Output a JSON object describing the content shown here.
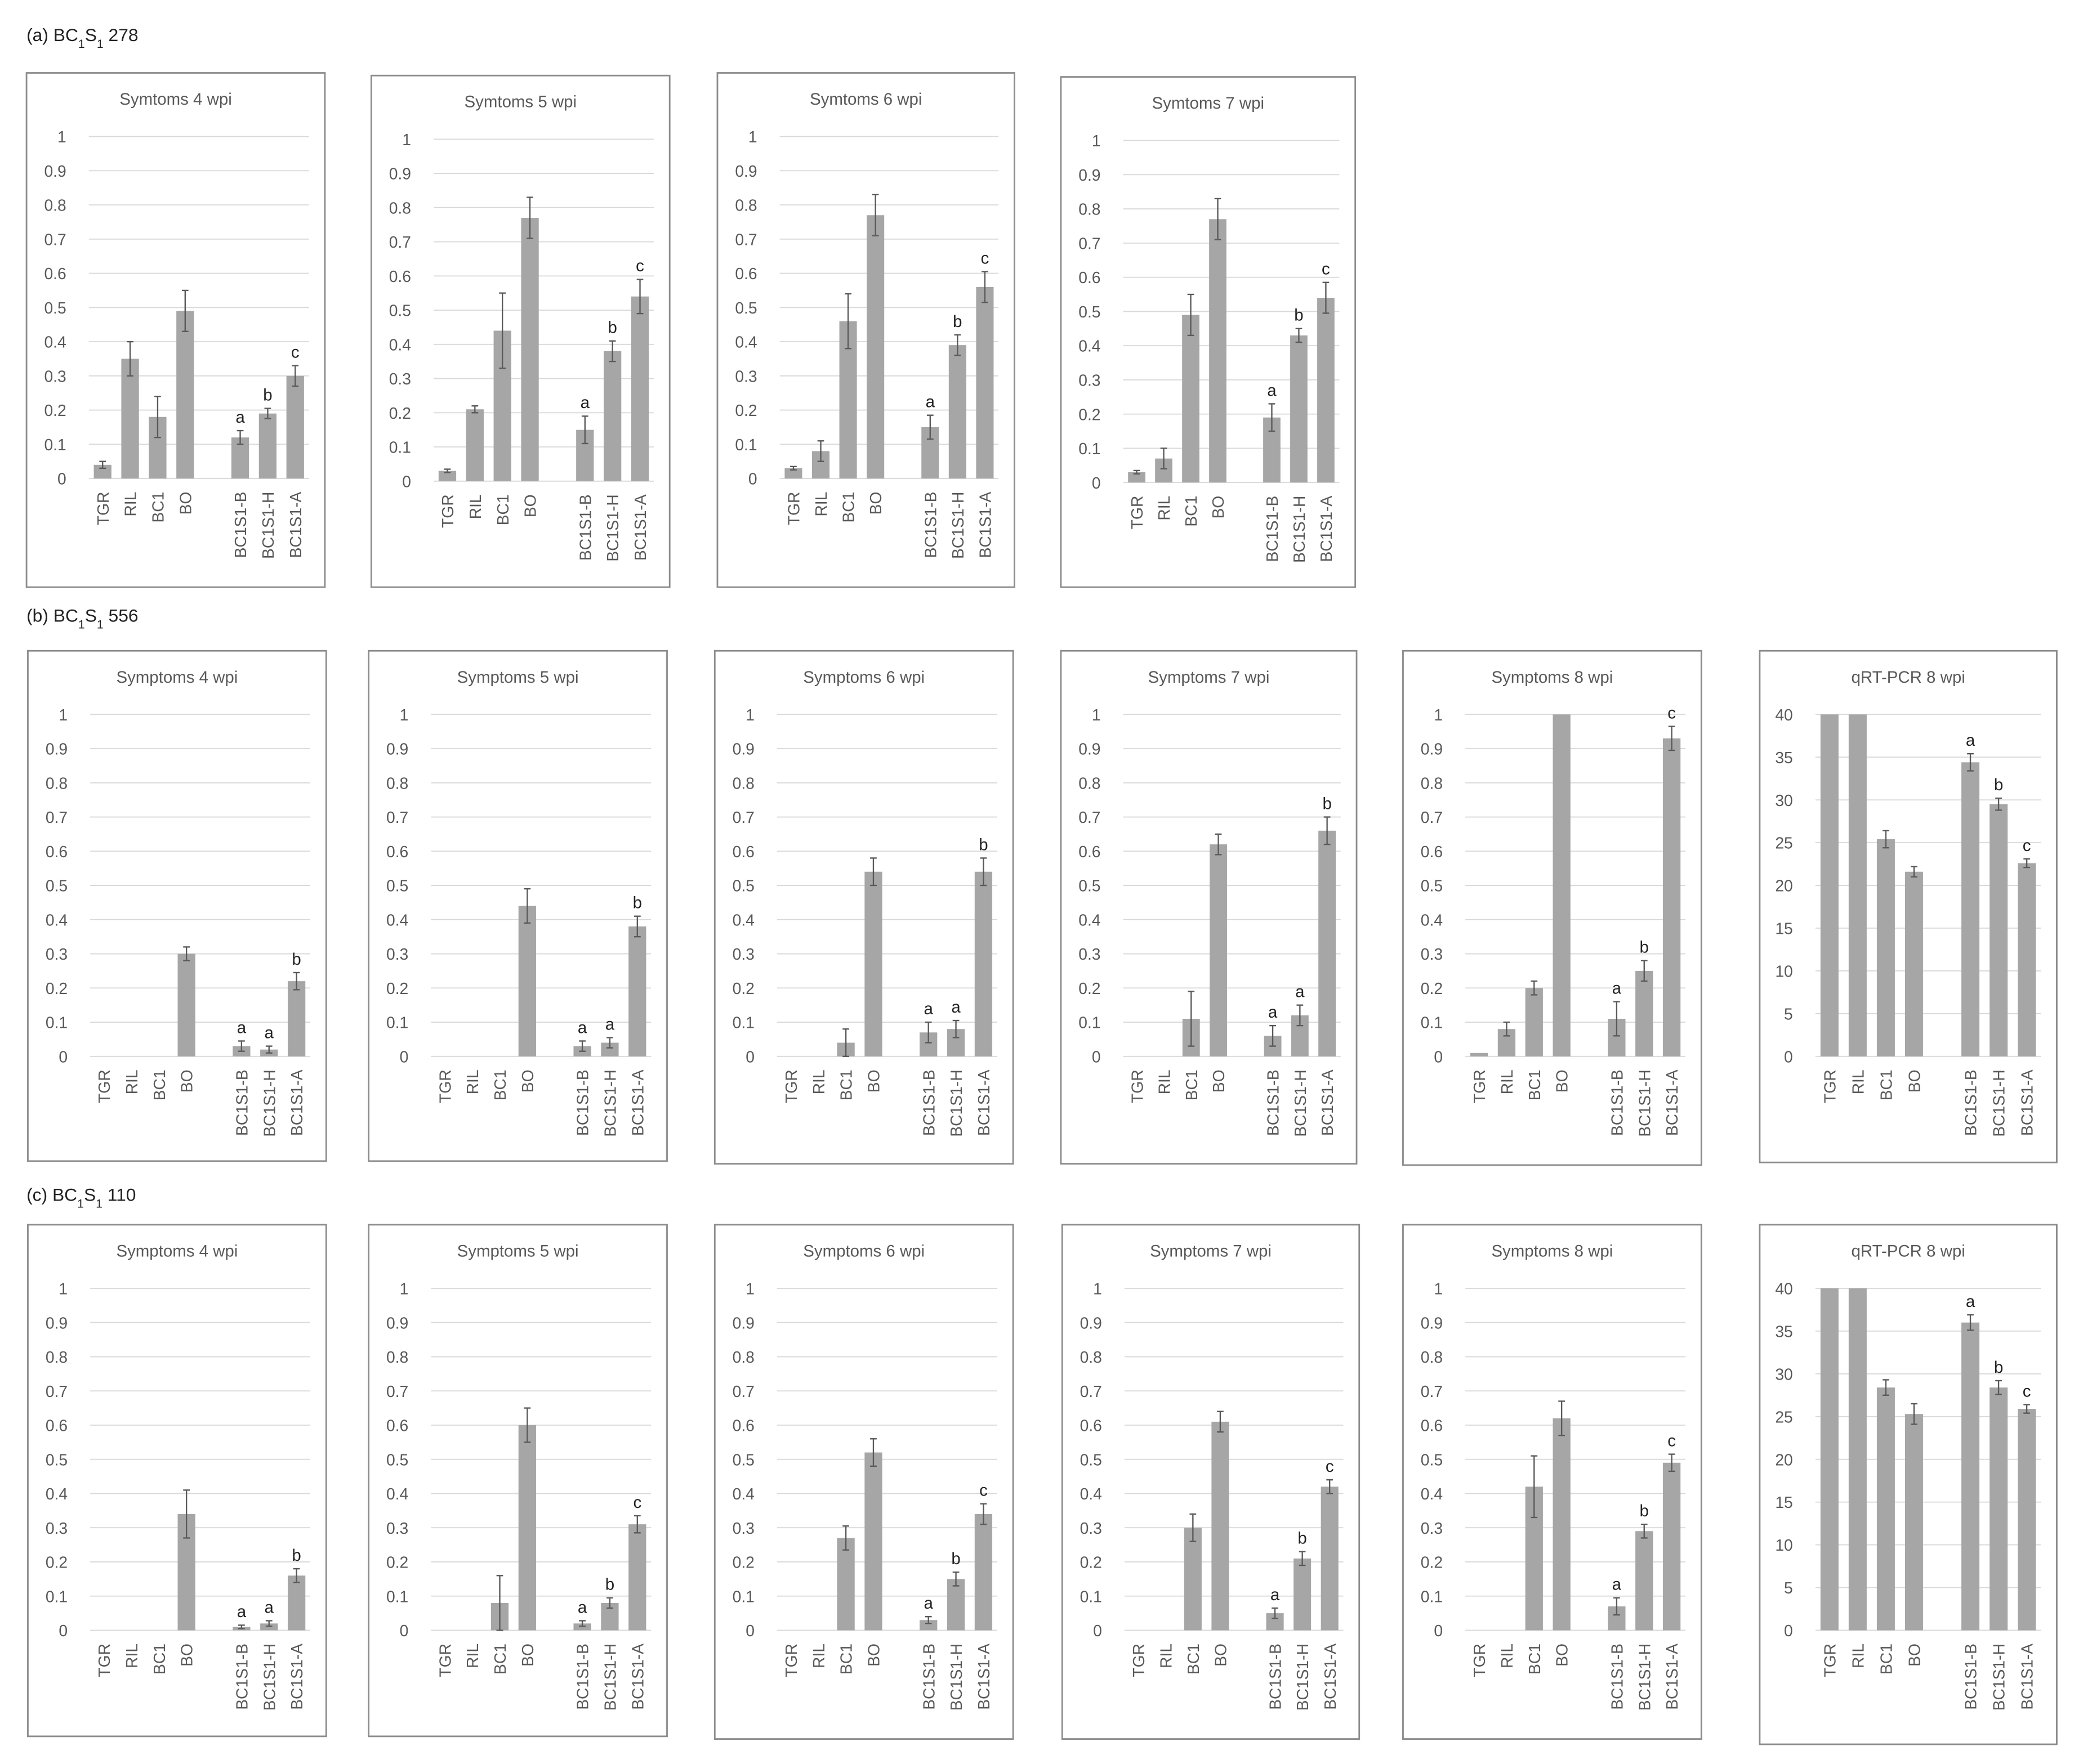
{
  "groups": [
    {
      "prefix": "(a) BC",
      "sub1": "1",
      "mid": "S",
      "sub2": "1",
      "suffix": " 278"
    },
    {
      "prefix": "(b) BC",
      "sub1": "1",
      "mid": "S",
      "sub2": "1",
      "suffix": " 556"
    },
    {
      "prefix": "(c) BC",
      "sub1": "1",
      "mid": "S",
      "sub2": "1",
      "suffix": " 110"
    }
  ],
  "colors": {
    "bar": "#a6a6a6",
    "error": "#595959",
    "grid": "#d9d9d9",
    "frame": "#8c8c8c",
    "text": "#595959"
  },
  "chart_data": [
    {
      "type": "bar",
      "group": 0,
      "title": "Symtoms 4 wpi",
      "categories": [
        "TGR",
        "RIL",
        "BC1",
        "BO",
        "",
        "BC1S1-B",
        "BC1S1-H",
        "BC1S1-A"
      ],
      "values": [
        0.04,
        0.35,
        0.18,
        0.49,
        null,
        0.12,
        0.19,
        0.3
      ],
      "errors": [
        0.01,
        0.05,
        0.06,
        0.06,
        null,
        0.02,
        0.015,
        0.03
      ],
      "letters": [
        "",
        "",
        "",
        "",
        "",
        "a",
        "b",
        "c"
      ],
      "ylim": [
        0,
        1
      ],
      "yticks": [
        "0",
        "0.1",
        "0.2",
        "0.3",
        "0.4",
        "0.5",
        "0.6",
        "0.7",
        "0.8",
        "0.9",
        "1"
      ],
      "grid": true
    },
    {
      "type": "bar",
      "group": 0,
      "title": "Symtoms 5 wpi",
      "categories": [
        "TGR",
        "RIL",
        "BC1",
        "BO",
        "",
        "BC1S1-B",
        "BC1S1-H",
        "BC1S1-A"
      ],
      "values": [
        0.03,
        0.21,
        0.44,
        0.77,
        null,
        0.15,
        0.38,
        0.54
      ],
      "errors": [
        0.005,
        0.01,
        0.11,
        0.06,
        null,
        0.04,
        0.03,
        0.05
      ],
      "letters": [
        "",
        "",
        "",
        "",
        "",
        "a",
        "b",
        "c"
      ],
      "ylim": [
        0,
        1
      ],
      "yticks": [
        "0",
        "0.1",
        "0.2",
        "0.3",
        "0.4",
        "0.5",
        "0.6",
        "0.7",
        "0.8",
        "0.9",
        "1"
      ],
      "grid": true
    },
    {
      "type": "bar",
      "group": 0,
      "title": "Symtoms 6 wpi",
      "categories": [
        "TGR",
        "RIL",
        "BC1",
        "BO",
        "",
        "BC1S1-B",
        "BC1S1-H",
        "BC1S1-A"
      ],
      "values": [
        0.03,
        0.08,
        0.46,
        0.77,
        null,
        0.15,
        0.39,
        0.56
      ],
      "errors": [
        0.005,
        0.03,
        0.08,
        0.06,
        null,
        0.035,
        0.03,
        0.045
      ],
      "letters": [
        "",
        "",
        "",
        "",
        "",
        "a",
        "b",
        "c"
      ],
      "ylim": [
        0,
        1
      ],
      "yticks": [
        "0",
        "0.1",
        "0.2",
        "0.3",
        "0.4",
        "0.5",
        "0.6",
        "0.7",
        "0.8",
        "0.9",
        "1"
      ],
      "grid": true
    },
    {
      "type": "bar",
      "group": 0,
      "title": "Symtoms 7 wpi",
      "categories": [
        "TGR",
        "RIL",
        "BC1",
        "BO",
        "",
        "BC1S1-B",
        "BC1S1-H",
        "BC1S1-A"
      ],
      "values": [
        0.03,
        0.07,
        0.49,
        0.77,
        null,
        0.19,
        0.43,
        0.54
      ],
      "errors": [
        0.005,
        0.03,
        0.06,
        0.06,
        null,
        0.04,
        0.02,
        0.045
      ],
      "letters": [
        "",
        "",
        "",
        "",
        "",
        "a",
        "b",
        "c"
      ],
      "ylim": [
        0,
        1
      ],
      "yticks": [
        "0",
        "0.1",
        "0.2",
        "0.3",
        "0.4",
        "0.5",
        "0.6",
        "0.7",
        "0.8",
        "0.9",
        "1"
      ],
      "grid": true
    },
    {
      "type": "bar",
      "group": 1,
      "title": "Symptoms 4 wpi",
      "categories": [
        "TGR",
        "RIL",
        "BC1",
        "BO",
        "",
        "BC1S1-B",
        "BC1S1-H",
        "BC1S1-A"
      ],
      "values": [
        0,
        0,
        0,
        0.3,
        null,
        0.03,
        0.02,
        0.22
      ],
      "errors": [
        0,
        0,
        0,
        0.02,
        null,
        0.015,
        0.01,
        0.025
      ],
      "letters": [
        "",
        "",
        "",
        "",
        "",
        "a",
        "a",
        "b"
      ],
      "ylim": [
        0,
        1
      ],
      "yticks": [
        "0",
        "0.1",
        "0.2",
        "0.3",
        "0.4",
        "0.5",
        "0.6",
        "0.7",
        "0.8",
        "0.9",
        "1"
      ],
      "grid": true
    },
    {
      "type": "bar",
      "group": 1,
      "title": "Symptoms 5 wpi",
      "categories": [
        "TGR",
        "RIL",
        "BC1",
        "BO",
        "",
        "BC1S1-B",
        "BC1S1-H",
        "BC1S1-A"
      ],
      "values": [
        0,
        0,
        0,
        0.44,
        null,
        0.03,
        0.04,
        0.38
      ],
      "errors": [
        0,
        0,
        0,
        0.05,
        null,
        0.015,
        0.015,
        0.03
      ],
      "letters": [
        "",
        "",
        "",
        "",
        "",
        "a",
        "a",
        "b"
      ],
      "ylim": [
        0,
        1
      ],
      "yticks": [
        "0",
        "0.1",
        "0.2",
        "0.3",
        "0.4",
        "0.5",
        "0.6",
        "0.7",
        "0.8",
        "0.9",
        "1"
      ],
      "grid": true
    },
    {
      "type": "bar",
      "group": 1,
      "title": "Symptoms 6 wpi",
      "categories": [
        "TGR",
        "RIL",
        "BC1",
        "BO",
        "",
        "BC1S1-B",
        "BC1S1-H",
        "BC1S1-A"
      ],
      "values": [
        0,
        0,
        0.04,
        0.54,
        null,
        0.07,
        0.08,
        0.54
      ],
      "errors": [
        0,
        0,
        0.04,
        0.04,
        null,
        0.03,
        0.025,
        0.04
      ],
      "letters": [
        "",
        "",
        "",
        "",
        "",
        "a",
        "a",
        "b"
      ],
      "ylim": [
        0,
        1
      ],
      "yticks": [
        "0",
        "0.1",
        "0.2",
        "0.3",
        "0.4",
        "0.5",
        "0.6",
        "0.7",
        "0.8",
        "0.9",
        "1"
      ],
      "grid": true
    },
    {
      "type": "bar",
      "group": 1,
      "title": "Symptoms 7 wpi",
      "categories": [
        "TGR",
        "RIL",
        "BC1",
        "BO",
        "",
        "BC1S1-B",
        "BC1S1-H",
        "BC1S1-A"
      ],
      "values": [
        0,
        0,
        0.11,
        0.62,
        null,
        0.06,
        0.12,
        0.66
      ],
      "errors": [
        0,
        0,
        0.08,
        0.03,
        null,
        0.03,
        0.03,
        0.04
      ],
      "letters": [
        "",
        "",
        "",
        "",
        "",
        "a",
        "a",
        "b"
      ],
      "ylim": [
        0,
        1
      ],
      "yticks": [
        "0",
        "0.1",
        "0.2",
        "0.3",
        "0.4",
        "0.5",
        "0.6",
        "0.7",
        "0.8",
        "0.9",
        "1"
      ],
      "grid": true
    },
    {
      "type": "bar",
      "group": 1,
      "title": "Symptoms 8 wpi",
      "categories": [
        "TGR",
        "RIL",
        "BC1",
        "BO",
        "",
        "BC1S1-B",
        "BC1S1-H",
        "BC1S1-A"
      ],
      "values": [
        0.01,
        0.08,
        0.2,
        1.0,
        null,
        0.11,
        0.25,
        0.93
      ],
      "errors": [
        0,
        0.02,
        0.02,
        0,
        null,
        0.05,
        0.03,
        0.035
      ],
      "letters": [
        "",
        "",
        "",
        "",
        "",
        "a",
        "b",
        "c"
      ],
      "ylim": [
        0,
        1
      ],
      "yticks": [
        "0",
        "0.1",
        "0.2",
        "0.3",
        "0.4",
        "0.5",
        "0.6",
        "0.7",
        "0.8",
        "0.9",
        "1"
      ],
      "grid": true
    },
    {
      "type": "bar",
      "group": 1,
      "title": "qRT-PCR 8 wpi",
      "categories": [
        "TGR",
        "RIL",
        "BC1",
        "BO",
        "",
        "BC1S1-B",
        "BC1S1-H",
        "BC1S1-A"
      ],
      "values": [
        40,
        40,
        25.4,
        21.6,
        null,
        34.4,
        29.5,
        22.6
      ],
      "errors": [
        0,
        0,
        1.0,
        0.6,
        null,
        1.0,
        0.7,
        0.5
      ],
      "letters": [
        "",
        "",
        "",
        "",
        "",
        "a",
        "b",
        "c"
      ],
      "ylim": [
        0,
        40
      ],
      "yticks": [
        "0",
        "5",
        "10",
        "15",
        "20",
        "25",
        "30",
        "35",
        "40"
      ],
      "grid": true
    },
    {
      "type": "bar",
      "group": 2,
      "title": "Symptoms 4 wpi",
      "categories": [
        "TGR",
        "RIL",
        "BC1",
        "BO",
        "",
        "BC1S1-B",
        "BC1S1-H",
        "BC1S1-A"
      ],
      "values": [
        0,
        0,
        0,
        0.34,
        null,
        0.01,
        0.02,
        0.16
      ],
      "errors": [
        0,
        0,
        0,
        0.07,
        null,
        0.005,
        0.008,
        0.02
      ],
      "letters": [
        "",
        "",
        "",
        "",
        "",
        "a",
        "a",
        "b"
      ],
      "ylim": [
        0,
        1
      ],
      "yticks": [
        "0",
        "0.1",
        "0.2",
        "0.3",
        "0.4",
        "0.5",
        "0.6",
        "0.7",
        "0.8",
        "0.9",
        "1"
      ],
      "grid": true
    },
    {
      "type": "bar",
      "group": 2,
      "title": "Symptoms 5 wpi",
      "categories": [
        "TGR",
        "RIL",
        "BC1",
        "BO",
        "",
        "BC1S1-B",
        "BC1S1-H",
        "BC1S1-A"
      ],
      "values": [
        0,
        0,
        0.08,
        0.6,
        null,
        0.02,
        0.08,
        0.31
      ],
      "errors": [
        0,
        0,
        0.08,
        0.05,
        null,
        0.008,
        0.015,
        0.025
      ],
      "letters": [
        "",
        "",
        "",
        "",
        "",
        "a",
        "b",
        "c"
      ],
      "ylim": [
        0,
        1
      ],
      "yticks": [
        "0",
        "0.1",
        "0.2",
        "0.3",
        "0.4",
        "0.5",
        "0.6",
        "0.7",
        "0.8",
        "0.9",
        "1"
      ],
      "grid": true
    },
    {
      "type": "bar",
      "group": 2,
      "title": "Symptoms 6 wpi",
      "categories": [
        "TGR",
        "RIL",
        "BC1",
        "BO",
        "",
        "BC1S1-B",
        "BC1S1-H",
        "BC1S1-A"
      ],
      "values": [
        0,
        0,
        0.27,
        0.52,
        null,
        0.03,
        0.15,
        0.34
      ],
      "errors": [
        0,
        0,
        0.035,
        0.04,
        null,
        0.01,
        0.02,
        0.03
      ],
      "letters": [
        "",
        "",
        "",
        "",
        "",
        "a",
        "b",
        "c"
      ],
      "ylim": [
        0,
        1
      ],
      "yticks": [
        "0",
        "0.1",
        "0.2",
        "0.3",
        "0.4",
        "0.5",
        "0.6",
        "0.7",
        "0.8",
        "0.9",
        "1"
      ],
      "grid": true
    },
    {
      "type": "bar",
      "group": 2,
      "title": "Symptoms 7 wpi",
      "categories": [
        "TGR",
        "RIL",
        "BC1",
        "BO",
        "",
        "BC1S1-B",
        "BC1S1-H",
        "BC1S1-A"
      ],
      "values": [
        0,
        0,
        0.3,
        0.61,
        null,
        0.05,
        0.21,
        0.42
      ],
      "errors": [
        0,
        0,
        0.04,
        0.03,
        null,
        0.015,
        0.02,
        0.02
      ],
      "letters": [
        "",
        "",
        "",
        "",
        "",
        "a",
        "b",
        "c"
      ],
      "ylim": [
        0,
        1
      ],
      "yticks": [
        "0",
        "0.1",
        "0.2",
        "0.3",
        "0.4",
        "0.5",
        "0.6",
        "0.7",
        "0.8",
        "0.9",
        "1"
      ],
      "grid": true
    },
    {
      "type": "bar",
      "group": 2,
      "title": "Symptoms 8 wpi",
      "categories": [
        "TGR",
        "RIL",
        "BC1",
        "BO",
        "",
        "BC1S1-B",
        "BC1S1-H",
        "BC1S1-A"
      ],
      "values": [
        0,
        0,
        0.42,
        0.62,
        null,
        0.07,
        0.29,
        0.49
      ],
      "errors": [
        0,
        0,
        0.09,
        0.05,
        null,
        0.025,
        0.02,
        0.025
      ],
      "letters": [
        "",
        "",
        "",
        "",
        "",
        "a",
        "b",
        "c"
      ],
      "ylim": [
        0,
        1
      ],
      "yticks": [
        "0",
        "0.1",
        "0.2",
        "0.3",
        "0.4",
        "0.5",
        "0.6",
        "0.7",
        "0.8",
        "0.9",
        "1"
      ],
      "grid": true
    },
    {
      "type": "bar",
      "group": 2,
      "title": "qRT-PCR 8 wpi",
      "categories": [
        "TGR",
        "RIL",
        "BC1",
        "BO",
        "",
        "BC1S1-B",
        "BC1S1-H",
        "BC1S1-A"
      ],
      "values": [
        40,
        40,
        28.4,
        25.3,
        null,
        36.0,
        28.4,
        25.9
      ],
      "errors": [
        0,
        0,
        0.9,
        1.2,
        null,
        0.9,
        0.8,
        0.5
      ],
      "letters": [
        "",
        "",
        "",
        "",
        "",
        "a",
        "b",
        "c"
      ],
      "ylim": [
        0,
        40
      ],
      "yticks": [
        "0",
        "5",
        "10",
        "15",
        "20",
        "25",
        "30",
        "35",
        "40"
      ],
      "grid": true
    }
  ]
}
